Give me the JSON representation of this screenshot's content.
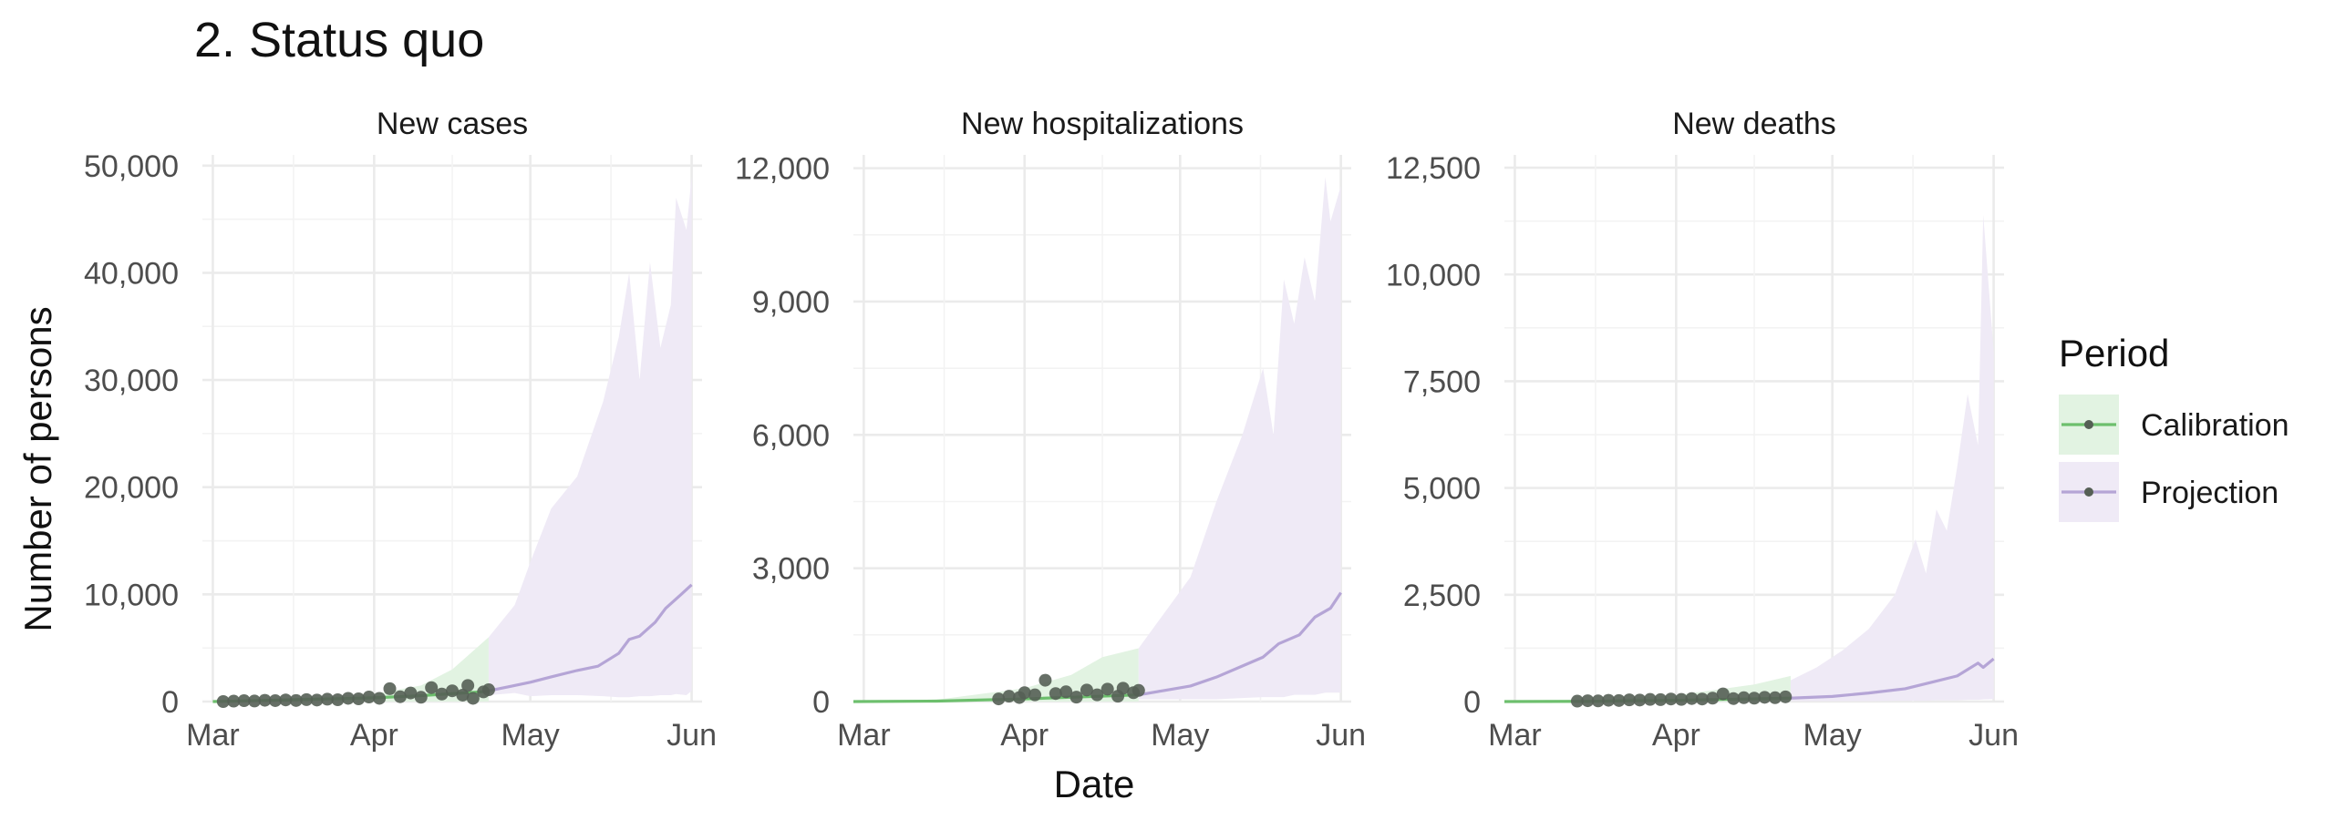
{
  "title": "2. Status quo",
  "chart_data": {
    "type": "line",
    "title": "2. Status quo",
    "xlabel": "Date",
    "ylabel": "Number of persons",
    "x_tick_labels": [
      "Mar",
      "Apr",
      "May",
      "Jun"
    ],
    "x_range": [
      "2020-02-28",
      "2020-06-03"
    ],
    "grid": true,
    "legend": {
      "title": "Period",
      "placement": "right",
      "entries": [
        {
          "label": "Calibration",
          "line_color": "#6dbf6d",
          "ribbon_color": "#e2f3e2"
        },
        {
          "label": "Projection",
          "line_color": "#b5a5d6",
          "ribbon_color": "#efeaf6"
        }
      ]
    },
    "panels": [
      {
        "strip": "New cases",
        "ylim": [
          0,
          51000
        ],
        "y_ticks": [
          0,
          10000,
          20000,
          30000,
          40000,
          50000
        ],
        "y_tick_labels": [
          "0",
          "10,000",
          "20,000",
          "30,000",
          "40,000",
          "50,000"
        ],
        "calibration_line": [
          [
            "2020-03-01",
            0
          ],
          [
            "2020-03-15",
            150
          ],
          [
            "2020-04-01",
            350
          ],
          [
            "2020-04-10",
            550
          ],
          [
            "2020-04-23",
            950
          ]
        ],
        "calibration_band": [
          [
            "2020-03-01",
            0,
            0
          ],
          [
            "2020-03-15",
            0,
            300
          ],
          [
            "2020-04-01",
            0,
            700
          ],
          [
            "2020-04-10",
            0,
            1500
          ],
          [
            "2020-04-16",
            0,
            3000
          ],
          [
            "2020-04-23",
            0,
            6000
          ]
        ],
        "observed_points": [
          [
            "2020-03-03",
            0
          ],
          [
            "2020-03-05",
            40
          ],
          [
            "2020-03-07",
            80
          ],
          [
            "2020-03-09",
            50
          ],
          [
            "2020-03-11",
            120
          ],
          [
            "2020-03-13",
            90
          ],
          [
            "2020-03-15",
            150
          ],
          [
            "2020-03-17",
            100
          ],
          [
            "2020-03-19",
            180
          ],
          [
            "2020-03-21",
            140
          ],
          [
            "2020-03-23",
            220
          ],
          [
            "2020-03-25",
            170
          ],
          [
            "2020-03-27",
            300
          ],
          [
            "2020-03-29",
            250
          ],
          [
            "2020-03-31",
            420
          ],
          [
            "2020-04-02",
            300
          ],
          [
            "2020-04-04",
            1200
          ],
          [
            "2020-04-06",
            450
          ],
          [
            "2020-04-08",
            800
          ],
          [
            "2020-04-10",
            400
          ],
          [
            "2020-04-12",
            1300
          ],
          [
            "2020-04-14",
            700
          ],
          [
            "2020-04-16",
            1000
          ],
          [
            "2020-04-18",
            600
          ],
          [
            "2020-04-19",
            1500
          ],
          [
            "2020-04-20",
            300
          ],
          [
            "2020-04-22",
            900
          ],
          [
            "2020-04-23",
            1100
          ]
        ],
        "projection_line": [
          [
            "2020-04-23",
            1000
          ],
          [
            "2020-04-27",
            1400
          ],
          [
            "2020-05-01",
            1800
          ],
          [
            "2020-05-05",
            2300
          ],
          [
            "2020-05-10",
            2900
          ],
          [
            "2020-05-14",
            3300
          ],
          [
            "2020-05-18",
            4500
          ],
          [
            "2020-05-20",
            5800
          ],
          [
            "2020-05-22",
            6100
          ],
          [
            "2020-05-25",
            7400
          ],
          [
            "2020-05-27",
            8700
          ],
          [
            "2020-05-30",
            10000
          ],
          [
            "2020-06-01",
            10900
          ]
        ],
        "projection_band": [
          [
            "2020-04-23",
            600,
            6000
          ],
          [
            "2020-04-28",
            800,
            9000
          ],
          [
            "2020-05-01",
            500,
            13000
          ],
          [
            "2020-05-05",
            600,
            18000
          ],
          [
            "2020-05-10",
            600,
            21000
          ],
          [
            "2020-05-15",
            500,
            28000
          ],
          [
            "2020-05-18",
            400,
            34000
          ],
          [
            "2020-05-20",
            400,
            40000
          ],
          [
            "2020-05-22",
            500,
            30000
          ],
          [
            "2020-05-24",
            500,
            41000
          ],
          [
            "2020-05-26",
            600,
            33000
          ],
          [
            "2020-05-28",
            600,
            37000
          ],
          [
            "2020-05-29",
            700,
            47000
          ],
          [
            "2020-05-31",
            600,
            44000
          ],
          [
            "2020-06-01",
            1000,
            49000
          ]
        ]
      },
      {
        "strip": "New hospitalizations",
        "ylim": [
          0,
          12300
        ],
        "y_ticks": [
          0,
          3000,
          6000,
          9000,
          12000
        ],
        "y_tick_labels": [
          "0",
          "3,000",
          "6,000",
          "9,000",
          "12,000"
        ],
        "calibration_line": [
          [
            "2020-02-28",
            0
          ],
          [
            "2020-03-15",
            10
          ],
          [
            "2020-04-01",
            60
          ],
          [
            "2020-04-23",
            150
          ]
        ],
        "calibration_band": [
          [
            "2020-02-28",
            0,
            0
          ],
          [
            "2020-03-15",
            0,
            40
          ],
          [
            "2020-04-01",
            0,
            300
          ],
          [
            "2020-04-10",
            0,
            600
          ],
          [
            "2020-04-16",
            0,
            1000
          ],
          [
            "2020-04-23",
            0,
            1200
          ]
        ],
        "observed_points": [
          [
            "2020-03-27",
            60
          ],
          [
            "2020-03-29",
            120
          ],
          [
            "2020-03-31",
            90
          ],
          [
            "2020-04-01",
            200
          ],
          [
            "2020-04-03",
            150
          ],
          [
            "2020-04-05",
            480
          ],
          [
            "2020-04-07",
            180
          ],
          [
            "2020-04-09",
            220
          ],
          [
            "2020-04-11",
            100
          ],
          [
            "2020-04-13",
            260
          ],
          [
            "2020-04-15",
            150
          ],
          [
            "2020-04-17",
            280
          ],
          [
            "2020-04-19",
            120
          ],
          [
            "2020-04-20",
            300
          ],
          [
            "2020-04-22",
            200
          ],
          [
            "2020-04-23",
            250
          ]
        ],
        "projection_line": [
          [
            "2020-04-23",
            150
          ],
          [
            "2020-04-28",
            250
          ],
          [
            "2020-05-03",
            350
          ],
          [
            "2020-05-08",
            550
          ],
          [
            "2020-05-13",
            800
          ],
          [
            "2020-05-17",
            1000
          ],
          [
            "2020-05-20",
            1300
          ],
          [
            "2020-05-24",
            1500
          ],
          [
            "2020-05-27",
            1900
          ],
          [
            "2020-05-30",
            2100
          ],
          [
            "2020-06-01",
            2450
          ]
        ],
        "projection_band": [
          [
            "2020-04-23",
            50,
            1200
          ],
          [
            "2020-04-28",
            50,
            2000
          ],
          [
            "2020-05-03",
            50,
            2800
          ],
          [
            "2020-05-08",
            50,
            4500
          ],
          [
            "2020-05-13",
            80,
            6000
          ],
          [
            "2020-05-17",
            100,
            7500
          ],
          [
            "2020-05-19",
            100,
            6000
          ],
          [
            "2020-05-21",
            100,
            9500
          ],
          [
            "2020-05-23",
            150,
            8500
          ],
          [
            "2020-05-25",
            150,
            10000
          ],
          [
            "2020-05-27",
            150,
            9000
          ],
          [
            "2020-05-29",
            200,
            11800
          ],
          [
            "2020-05-30",
            200,
            10800
          ],
          [
            "2020-06-01",
            200,
            11600
          ]
        ]
      },
      {
        "strip": "New deaths",
        "ylim": [
          0,
          12800
        ],
        "y_ticks": [
          0,
          2500,
          5000,
          7500,
          10000,
          12500
        ],
        "y_tick_labels": [
          "0",
          "2,500",
          "5,000",
          "7,500",
          "10,000",
          "12,500"
        ],
        "calibration_line": [
          [
            "2020-02-28",
            0
          ],
          [
            "2020-03-15",
            5
          ],
          [
            "2020-04-01",
            30
          ],
          [
            "2020-04-23",
            80
          ]
        ],
        "calibration_band": [
          [
            "2020-02-28",
            0,
            0
          ],
          [
            "2020-03-15",
            0,
            20
          ],
          [
            "2020-04-01",
            0,
            150
          ],
          [
            "2020-04-10",
            0,
            300
          ],
          [
            "2020-04-16",
            0,
            400
          ],
          [
            "2020-04-23",
            0,
            600
          ]
        ],
        "observed_points": [
          [
            "2020-03-13",
            10
          ],
          [
            "2020-03-15",
            20
          ],
          [
            "2020-03-17",
            15
          ],
          [
            "2020-03-19",
            30
          ],
          [
            "2020-03-21",
            25
          ],
          [
            "2020-03-23",
            40
          ],
          [
            "2020-03-25",
            35
          ],
          [
            "2020-03-27",
            50
          ],
          [
            "2020-03-29",
            45
          ],
          [
            "2020-03-31",
            60
          ],
          [
            "2020-04-02",
            50
          ],
          [
            "2020-04-04",
            70
          ],
          [
            "2020-04-06",
            60
          ],
          [
            "2020-04-08",
            80
          ],
          [
            "2020-04-10",
            180
          ],
          [
            "2020-04-12",
            70
          ],
          [
            "2020-04-14",
            90
          ],
          [
            "2020-04-16",
            80
          ],
          [
            "2020-04-18",
            100
          ],
          [
            "2020-04-20",
            90
          ],
          [
            "2020-04-22",
            110
          ]
        ],
        "projection_line": [
          [
            "2020-04-23",
            80
          ],
          [
            "2020-05-01",
            120
          ],
          [
            "2020-05-08",
            200
          ],
          [
            "2020-05-15",
            300
          ],
          [
            "2020-05-20",
            450
          ],
          [
            "2020-05-25",
            600
          ],
          [
            "2020-05-29",
            900
          ],
          [
            "2020-05-30",
            800
          ],
          [
            "2020-06-01",
            1000
          ]
        ],
        "projection_band": [
          [
            "2020-04-23",
            10,
            500
          ],
          [
            "2020-04-28",
            10,
            800
          ],
          [
            "2020-05-03",
            10,
            1200
          ],
          [
            "2020-05-08",
            10,
            1700
          ],
          [
            "2020-05-13",
            20,
            2500
          ],
          [
            "2020-05-17",
            20,
            3800
          ],
          [
            "2020-05-19",
            20,
            3000
          ],
          [
            "2020-05-21",
            30,
            4500
          ],
          [
            "2020-05-23",
            30,
            4000
          ],
          [
            "2020-05-25",
            30,
            5500
          ],
          [
            "2020-05-27",
            40,
            7200
          ],
          [
            "2020-05-29",
            40,
            6000
          ],
          [
            "2020-05-30",
            50,
            11400
          ],
          [
            "2020-06-01",
            60,
            8200
          ]
        ]
      }
    ]
  }
}
